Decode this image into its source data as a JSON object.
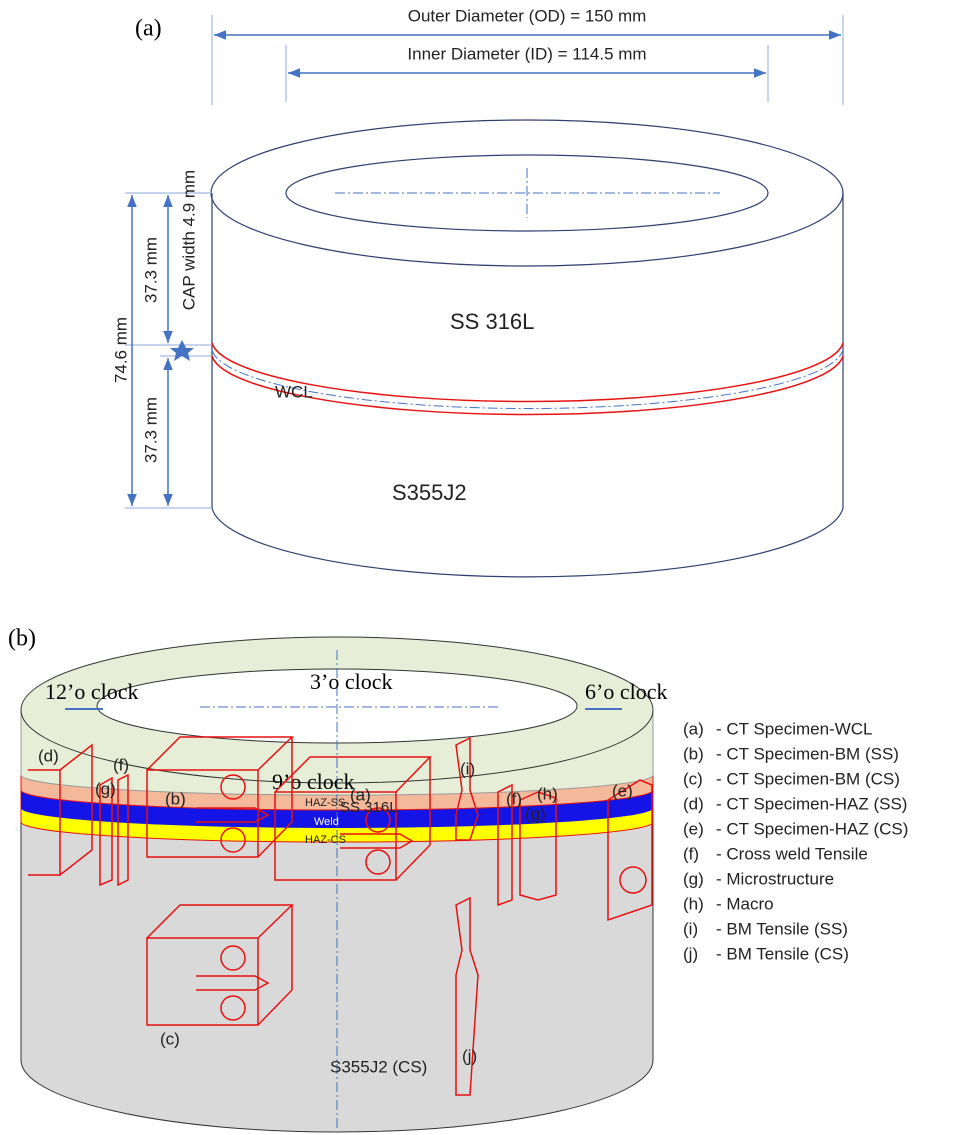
{
  "panel_a": {
    "label": "(a)",
    "outer_diameter": "Outer Diameter (OD) = 150 mm",
    "inner_diameter": "Inner Diameter (ID) = 114.5 mm",
    "height_total": "74.6 mm",
    "height_top": "37.3 mm",
    "height_bottom": "37.3 mm",
    "cap_width": "CAP width 4.9 mm",
    "top_material": "SS 316L",
    "bottom_material": "S355J2",
    "weld_center_line": "WCL"
  },
  "panel_b": {
    "label": "(b)",
    "clock_3": "3’o clock",
    "clock_12": "12’o clock",
    "clock_6": "6’o clock",
    "clock_9": "9’o clock",
    "top_material": "SS 316L",
    "bottom_material": "S355J2 (CS)",
    "zones": [
      "HAZ-SS",
      "Weld",
      "HAZ-CS"
    ],
    "specimen_labels": [
      "(a)",
      "(b)",
      "(c)",
      "(d)",
      "(e)",
      "(f)",
      "(f)",
      "(g)",
      "(g)",
      "(h)",
      "(i)",
      "(j)"
    ],
    "legend": [
      {
        "key": "(a)",
        "text": "- CT Specimen-WCL"
      },
      {
        "key": "(b)",
        "text": "- CT Specimen-BM (SS)"
      },
      {
        "key": "(c)",
        "text": "- CT Specimen-BM (CS)"
      },
      {
        "key": "(d)",
        "text": "- CT Specimen-HAZ (SS)"
      },
      {
        "key": "(e)",
        "text": " - CT Specimen-HAZ (CS)"
      },
      {
        "key": "(f)",
        "text": " - Cross weld Tensile"
      },
      {
        "key": "(g)",
        "text": "- Microstructure"
      },
      {
        "key": "(h)",
        "text": "- Macro"
      },
      {
        "key": "(i)",
        "text": "- BM Tensile (SS)"
      },
      {
        "key": "(j)",
        "text": "- BM Tensile (CS)"
      }
    ]
  }
}
